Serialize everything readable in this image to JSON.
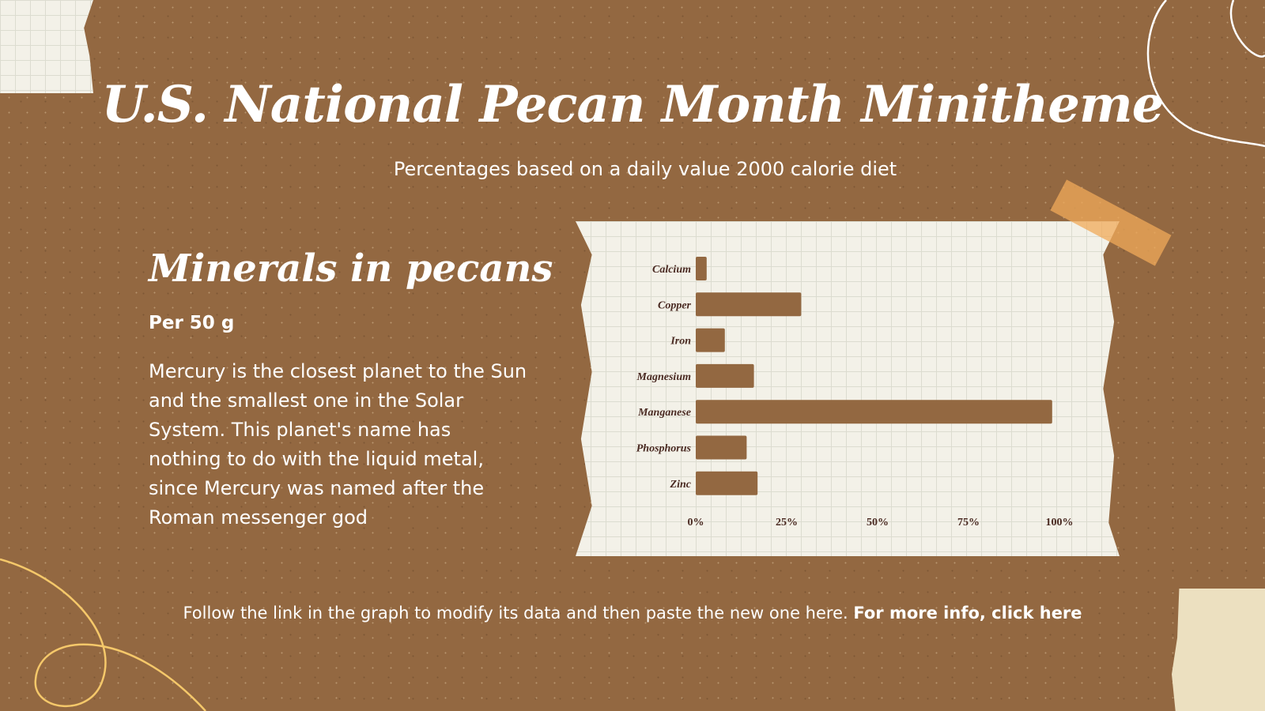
{
  "title": "U.S. National Pecan Month Minitheme",
  "subtitle": "Percentages based on a daily value 2000 calorie diet",
  "section": {
    "heading": "Minerals in pecans",
    "serving": "Per 50 g",
    "body": "Mercury is the closest planet to the Sun and the smallest one in the Solar System. This planet's name has nothing to do with the liquid metal, since Mercury was named after the Roman messenger god"
  },
  "footer": {
    "text": "Follow the link in the graph to modify its data and then paste the new one here.",
    "link": "For more info, click here"
  },
  "colors": {
    "background": "#936841",
    "bar": "#936841",
    "paper": "#f3f1e8",
    "accent_line": "#f5c86a"
  },
  "chart_data": {
    "type": "bar",
    "orientation": "horizontal",
    "categories": [
      "Calcium",
      "Copper",
      "Iron",
      "Magnesium",
      "Manganese",
      "Phosphorus",
      "Zinc"
    ],
    "values": [
      3,
      29,
      8,
      16,
      98,
      14,
      17
    ],
    "xlim": [
      0,
      100
    ],
    "xticks": [
      "0%",
      "25%",
      "50%",
      "75%",
      "100%"
    ],
    "grid": true
  }
}
